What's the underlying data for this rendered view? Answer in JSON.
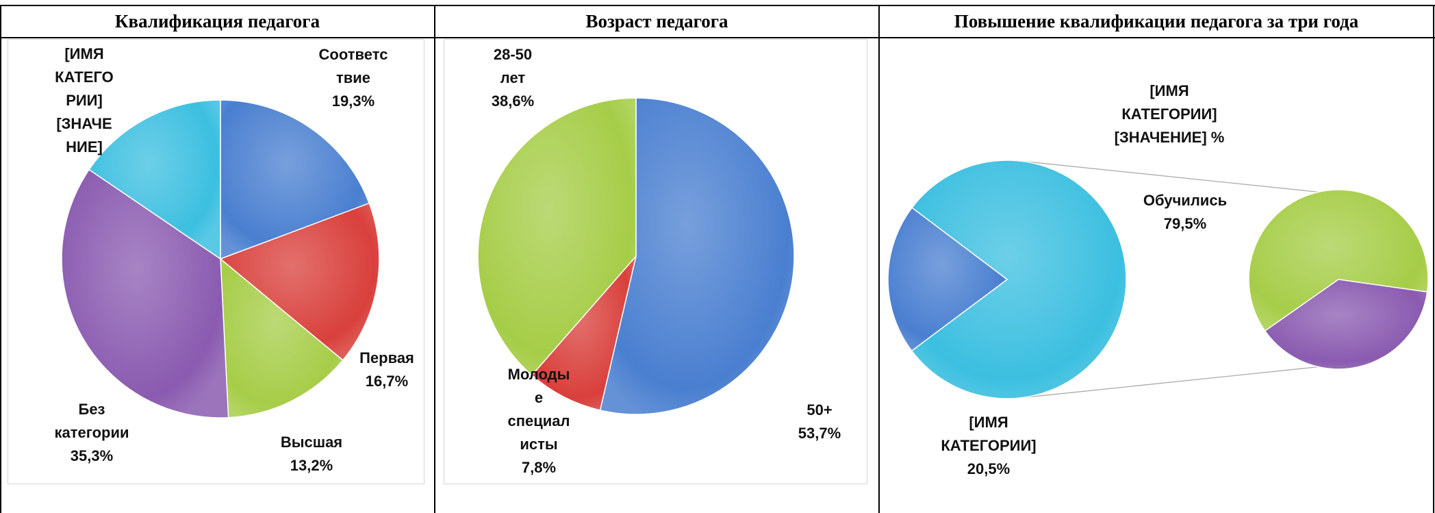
{
  "header": [
    "Квалификация педагога",
    "Возраст педагога",
    "Повышение квалификации педагога за три года"
  ],
  "chart_data": [
    {
      "type": "pie",
      "startangle": 0,
      "categories": [
        "Соответствие",
        "Первая",
        "Высшая",
        "Без категории",
        "[ИМЯ КАТЕГОРИИ]"
      ],
      "values": [
        19.3,
        16.7,
        13.2,
        35.3,
        15.5
      ],
      "value_labels": [
        "19,3%",
        "16,7%",
        "13,2%",
        "35,3%",
        "[ЗНАЧЕНИЕ]"
      ],
      "colors": [
        "#4a7fd0",
        "#d9403c",
        "#a6cd48",
        "#8a5bb0",
        "#3cbfe0"
      ]
    },
    {
      "type": "pie",
      "startangle": 0,
      "categories": [
        "50+",
        "Молодые специалисты",
        "28-50 лет"
      ],
      "values": [
        53.7,
        7.8,
        38.6
      ],
      "value_labels": [
        "53,7%",
        "7,8%",
        "38,6%"
      ],
      "colors": [
        "#4a7fd0",
        "#d9403c",
        "#a6cd48"
      ]
    },
    {
      "type": "pie_of_pie",
      "startangle": 307,
      "categories": [
        "Обучились",
        "[ИМЯ КАТЕГОРИИ]"
      ],
      "values": [
        79.5,
        20.5
      ],
      "value_labels": [
        "79,5%",
        "20,5%"
      ],
      "colors": [
        "#3cbfe0",
        "#4a7fd0"
      ],
      "secondary": {
        "startangle": 235,
        "categories": [
          "[ИМЯ КАТЕГОРИИ]",
          null
        ],
        "values": [
          12.7,
          7.8
        ],
        "value_labels": [
          "[ЗНАЧЕНИЕ] %",
          null
        ],
        "colors": [
          "#a6cd48",
          "#8a5bb0"
        ]
      }
    }
  ]
}
